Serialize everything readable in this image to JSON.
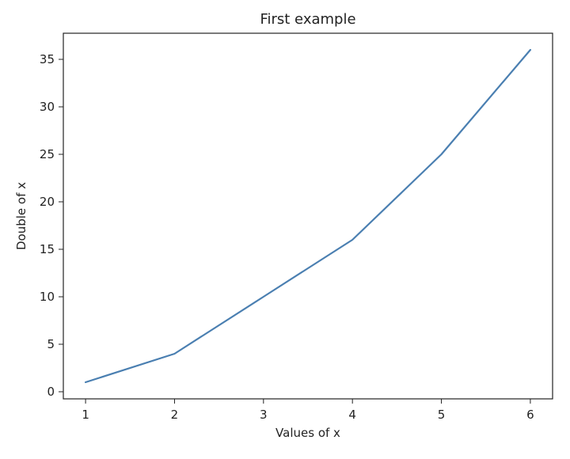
{
  "chart_data": {
    "type": "line",
    "title": "First example",
    "xlabel": "Values of x",
    "ylabel": "Double of x",
    "x": [
      1,
      2,
      3,
      4,
      5,
      6
    ],
    "series": [
      {
        "values": [
          1,
          4,
          10,
          16,
          25,
          36
        ],
        "color": "#4a7fb1"
      }
    ],
    "xlim": [
      0.75,
      6.25
    ],
    "ylim": [
      -0.75,
      37.75
    ],
    "xticks": [
      1,
      2,
      3,
      4,
      5,
      6
    ],
    "yticks": [
      0,
      5,
      10,
      15,
      20,
      25,
      30,
      35
    ],
    "grid": false,
    "legend": "none"
  }
}
